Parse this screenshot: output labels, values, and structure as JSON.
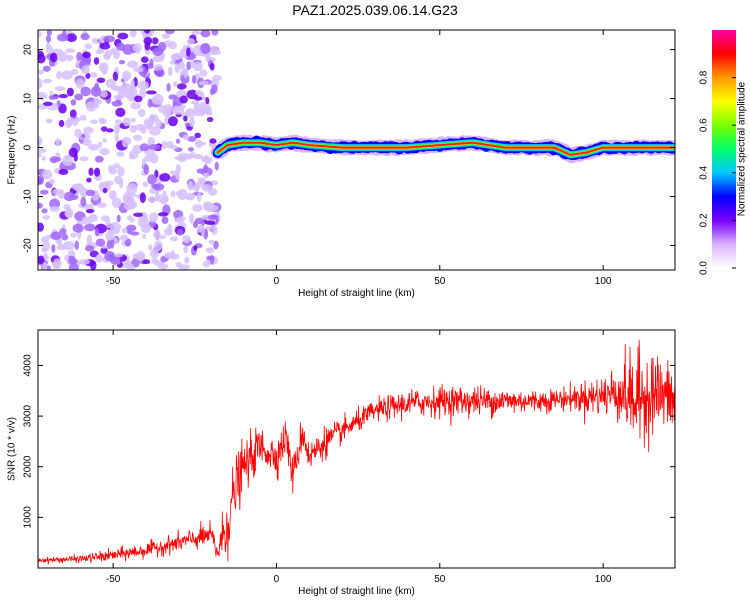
{
  "title": "PAZ1.2025.039.06.14.G23",
  "chart_data": [
    {
      "type": "heatmap",
      "xlabel": "Height of straight line (km)",
      "ylabel": "Frequency (Hz)",
      "xlim": [
        -73,
        122
      ],
      "ylim": [
        -25,
        24
      ],
      "xticks": [
        -50,
        0,
        50,
        100
      ],
      "yticks": [
        -20,
        -10,
        0,
        10,
        20
      ],
      "colorbar": {
        "label": "Normalized spectral amplitude",
        "range": [
          0,
          1
        ],
        "ticks": [
          0.0,
          0.2,
          0.4,
          0.6,
          0.8
        ],
        "colors": [
          "#ffffff",
          "#d9b3ff",
          "#7a00ff",
          "#0000ff",
          "#00c8ff",
          "#00ff66",
          "#7aff00",
          "#ffff00",
          "#ff9900",
          "#ff0000",
          "#ff00aa"
        ]
      },
      "noise_region_x": [
        -73,
        -18
      ],
      "signal_line": {
        "x": [
          -18,
          -15,
          -10,
          -5,
          0,
          5,
          10,
          20,
          30,
          40,
          50,
          60,
          70,
          80,
          85,
          90,
          95,
          100,
          110,
          122
        ],
        "y": [
          -1,
          0.5,
          1,
          1,
          0.5,
          1,
          0.5,
          0,
          0,
          0,
          0.5,
          1,
          0,
          0,
          0,
          -1.5,
          -1,
          0,
          0,
          0
        ]
      },
      "grid": false
    },
    {
      "type": "line",
      "xlabel": "Height of straight line (km)",
      "ylabel": "SNR (10 * v/v)",
      "xlim": [
        -73,
        122
      ],
      "ylim": [
        0,
        4700
      ],
      "xticks": [
        -50,
        0,
        50,
        100
      ],
      "yticks": [
        1000,
        2000,
        3000,
        4000
      ],
      "series": [
        {
          "color": "#ff0000",
          "x": [
            -73,
            -60,
            -50,
            -40,
            -30,
            -20,
            -18,
            -15,
            -12,
            -10,
            -5,
            0,
            3,
            5,
            8,
            10,
            15,
            20,
            25,
            30,
            40,
            50,
            60,
            70,
            80,
            90,
            100,
            105,
            110,
            115,
            122
          ],
          "y": [
            150,
            180,
            250,
            350,
            500,
            650,
            300,
            900,
            1700,
            2000,
            2400,
            2200,
            2600,
            1800,
            2700,
            2200,
            2500,
            2700,
            2900,
            3100,
            3250,
            3300,
            3300,
            3300,
            3300,
            3350,
            3400,
            3500,
            3300,
            3500,
            3300
          ],
          "noise_amplitude": [
            40,
            60,
            100,
            120,
            150,
            200,
            200,
            600,
            500,
            400,
            350,
            300,
            300,
            300,
            300,
            250,
            250,
            200,
            180,
            180,
            220,
            250,
            250,
            220,
            180,
            200,
            350,
            500,
            800,
            700,
            500
          ]
        }
      ],
      "grid": false
    }
  ]
}
